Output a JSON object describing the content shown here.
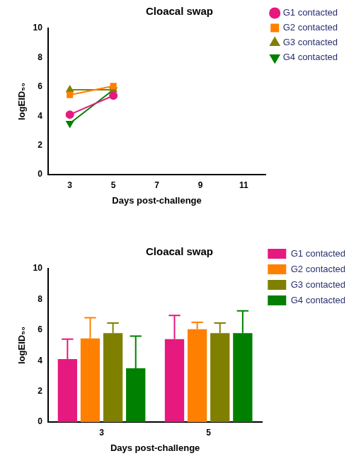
{
  "chart_data": [
    {
      "type": "line",
      "title": "Cloacal swap",
      "x_label": "Days post-challenge",
      "y_label": "logEID₅₀",
      "x": [
        3,
        5
      ],
      "xlim": [
        2,
        12
      ],
      "xticks": [
        3,
        5,
        7,
        9,
        11
      ],
      "ylim": [
        0,
        10
      ],
      "yticks": [
        0,
        2,
        4,
        6,
        8,
        10
      ],
      "grid": false,
      "legend": "right",
      "series": [
        {
          "name": "G1 contacted",
          "color": "#e6197f",
          "marker": "circle",
          "values": [
            4.1,
            5.4
          ]
        },
        {
          "name": "G2 contacted",
          "color": "#ff8000",
          "marker": "square",
          "values": [
            5.45,
            6.05
          ]
        },
        {
          "name": "G3 contacted",
          "color": "#808000",
          "marker": "triangle",
          "values": [
            5.8,
            5.8
          ]
        },
        {
          "name": "G4 contacted",
          "color": "#008000",
          "marker": "triangle-down",
          "values": [
            3.5,
            5.8
          ]
        }
      ]
    },
    {
      "type": "bar",
      "title": "Cloacal swap",
      "x_label": "Days post-challenge",
      "y_label": "logEID₅₀",
      "categories": [
        "3",
        "5"
      ],
      "ylim": [
        0,
        10
      ],
      "yticks": [
        0,
        2,
        4,
        6,
        8,
        10
      ],
      "grid": false,
      "legend": "right",
      "series": [
        {
          "name": "G1 contacted",
          "color": "#e6197f",
          "values": [
            4.1,
            5.4
          ],
          "errors": [
            1.3,
            1.55
          ]
        },
        {
          "name": "G2 contacted",
          "color": "#ff8000",
          "values": [
            5.45,
            6.05
          ],
          "errors": [
            1.35,
            0.45
          ]
        },
        {
          "name": "G3 contacted",
          "color": "#808000",
          "values": [
            5.8,
            5.8
          ],
          "errors": [
            0.65,
            0.65
          ]
        },
        {
          "name": "G4 contacted",
          "color": "#008000",
          "values": [
            3.5,
            5.8
          ],
          "errors": [
            2.1,
            1.45
          ]
        }
      ]
    }
  ]
}
